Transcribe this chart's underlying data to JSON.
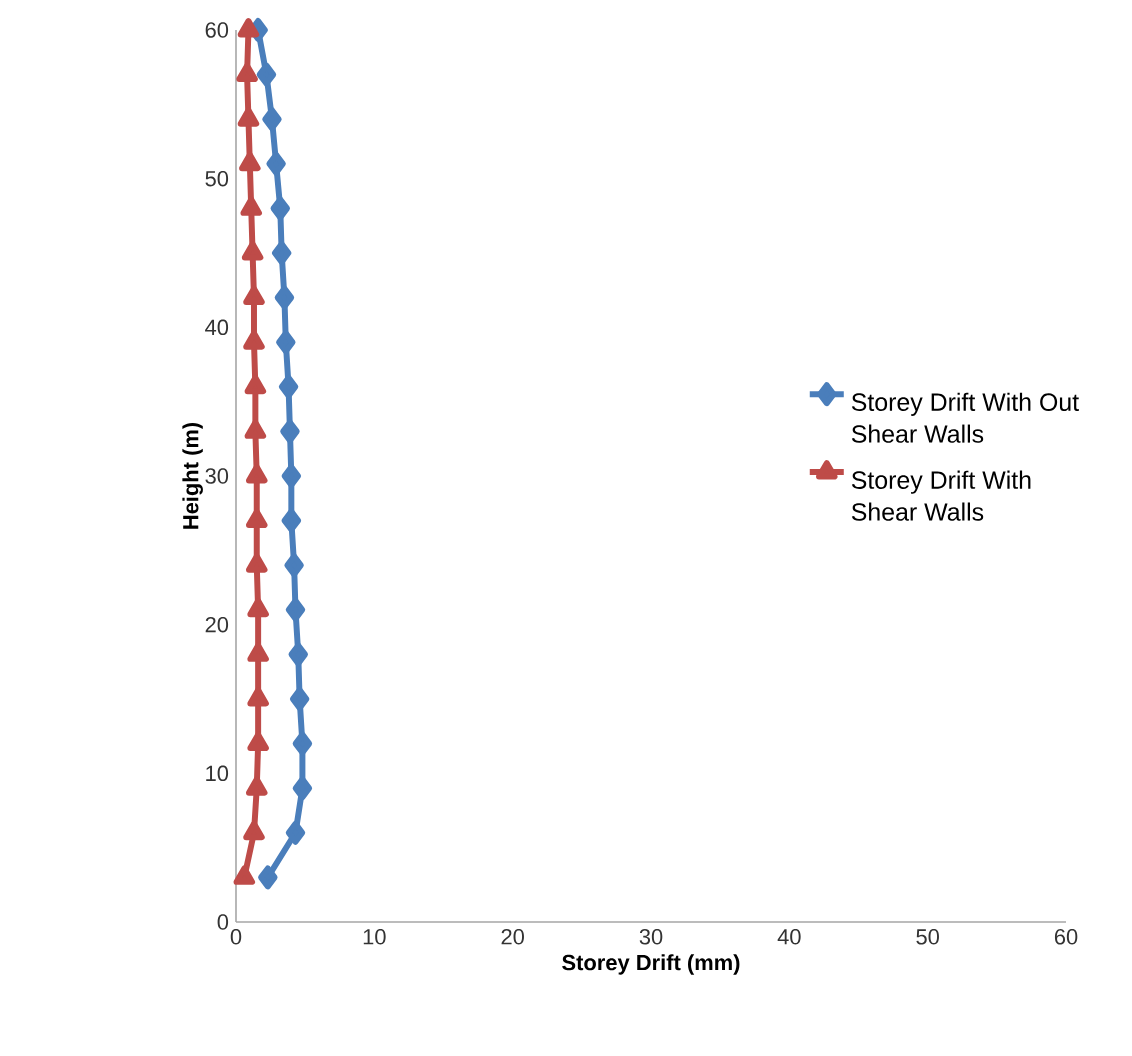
{
  "chart_data": {
    "type": "line",
    "xlabel": "Storey Drift (mm)",
    "ylabel": "Height (m)",
    "xlim": [
      0,
      60
    ],
    "xticks": [
      0,
      10,
      20,
      30,
      40,
      50,
      60
    ],
    "ylim": [
      0,
      60
    ],
    "yticks": [
      0,
      10,
      20,
      30,
      40,
      50,
      60
    ],
    "grid": false,
    "legend": "right",
    "series": [
      {
        "name": "Storey Drift With Out Shear Walls",
        "color": "#4a7ebb",
        "marker": "diamond",
        "x": [
          2.3,
          4.3,
          4.8,
          4.8,
          4.6,
          4.5,
          4.3,
          4.2,
          4.0,
          4.0,
          3.9,
          3.8,
          3.6,
          3.5,
          3.3,
          3.2,
          2.9,
          2.6,
          2.2,
          1.6
        ],
        "values": [
          3,
          6,
          9,
          12,
          15,
          18,
          21,
          24,
          27,
          30,
          33,
          36,
          39,
          42,
          45,
          48,
          51,
          54,
          57,
          60
        ]
      },
      {
        "name": "Storey Drift With Shear Walls",
        "color": "#be4b48",
        "marker": "triangle",
        "x": [
          0.6,
          1.3,
          1.5,
          1.6,
          1.6,
          1.6,
          1.6,
          1.5,
          1.5,
          1.5,
          1.4,
          1.4,
          1.3,
          1.3,
          1.2,
          1.1,
          1.0,
          0.9,
          0.8,
          0.9
        ],
        "values": [
          3,
          6,
          9,
          12,
          15,
          18,
          21,
          24,
          27,
          30,
          33,
          36,
          39,
          42,
          45,
          48,
          51,
          54,
          57,
          60
        ]
      }
    ]
  }
}
